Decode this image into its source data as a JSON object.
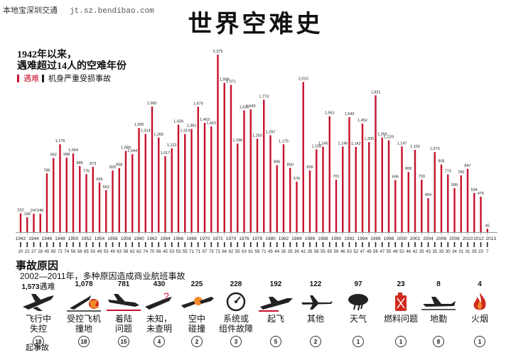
{
  "brand": {
    "name": "本地宝深圳交通",
    "url": "jt.sz.bendibao.com"
  },
  "title": "世界空难史",
  "subtitle_lines": [
    "1942年以来，",
    "遇难超过14人的空难年份"
  ],
  "legend": {
    "deaths_label": "遇难",
    "damaged_label": "机身严重受损事故",
    "deaths_color": "#c8102e",
    "damaged_color": "#222222"
  },
  "chart_data": {
    "type": "bar",
    "deaths_series_name": "遇难",
    "damaged_series_name": "机身严重受损事故",
    "year_labels": [
      "1942",
      "1944",
      "1946",
      "1948",
      "1950",
      "1952",
      "1954",
      "1956",
      "1958",
      "1960",
      "1962",
      "1964",
      "1966",
      "1968",
      "1970",
      "1972",
      "1974",
      "1976",
      "1978",
      "1980",
      "1982",
      "1984",
      "1986",
      "1988",
      "1990",
      "1992",
      "1994",
      "1996",
      "1998",
      "2000",
      "2002",
      "2004",
      "2006",
      "2008",
      "2010",
      "2012",
      "2013"
    ],
    "x": [
      1942,
      1943,
      1944,
      1945,
      1946,
      1947,
      1948,
      1949,
      1950,
      1951,
      1952,
      1953,
      1954,
      1955,
      1956,
      1957,
      1958,
      1959,
      1960,
      1961,
      1962,
      1963,
      1964,
      1965,
      1966,
      1967,
      1968,
      1969,
      1970,
      1971,
      1972,
      1973,
      1974,
      1975,
      1976,
      1977,
      1978,
      1979,
      1980,
      1981,
      1982,
      1983,
      1984,
      1985,
      1986,
      1987,
      1988,
      1989,
      1990,
      1991,
      1992,
      1993,
      1994,
      1995,
      1996,
      1997,
      1998,
      1999,
      2000,
      2001,
      2002,
      2003,
      2004,
      2005,
      2006,
      2007,
      2008,
      2009,
      2010,
      2011,
      2012,
      2013
    ],
    "deaths": [
      252,
      199,
      247,
      246,
      786,
      992,
      1176,
      998,
      1054,
      885,
      776,
      873,
      665,
      562,
      825,
      858,
      1088,
      1044,
      1395,
      1314,
      1681,
      1265,
      1017,
      1122,
      1439,
      1314,
      1381,
      1679,
      1463,
      1415,
      2375,
      1998,
      1971,
      1186,
      1630,
      1645,
      1250,
      1773,
      1297,
      896,
      1175,
      860,
      676,
      2010,
      826,
      1108,
      1145,
      1551,
      701,
      1146,
      1540,
      1142,
      1452,
      1205,
      1831,
      1266,
      1229,
      696,
      1147,
      806,
      1102,
      703,
      454,
      1073,
      905,
      773,
      589,
      760,
      847,
      524,
      475,
      45
    ],
    "damaged": [
      20,
      22,
      27,
      28,
      45,
      65,
      72,
      74,
      56,
      56,
      65,
      50,
      49,
      53,
      49,
      63,
      58,
      62,
      62,
      74,
      70,
      56,
      45,
      53,
      53,
      55,
      71,
      71,
      67,
      73,
      71,
      66,
      62,
      55,
      63,
      61,
      59,
      71,
      45,
      44,
      35,
      35,
      39,
      42,
      35,
      58,
      55,
      65,
      59,
      46,
      53,
      52,
      47,
      49,
      56,
      47,
      55,
      48,
      52,
      46,
      42,
      35,
      43,
      35,
      33,
      30,
      34,
      31,
      31,
      35,
      23,
      7
    ],
    "ylabel": "",
    "xlabel": ""
  },
  "causes_section": {
    "title": "事故原因",
    "subtitle": "2002—2011年，多种原因造成商业航班事故",
    "deaths_suffix": "遇难",
    "accident_note": "起事故",
    "items": [
      {
        "deaths": "1,573",
        "label1": "飞行中",
        "label2": "失控",
        "accidents": "18",
        "icon": "plane-falling-icon"
      },
      {
        "deaths": "1,078",
        "label1": "受控飞机",
        "label2": "撞地",
        "accidents": "18",
        "icon": "plane-crash-ground-icon"
      },
      {
        "deaths": "781",
        "label1": "着陆",
        "label2": "问题",
        "accidents": "15",
        "icon": "plane-landing-icon"
      },
      {
        "deaths": "430",
        "label1": "未知，",
        "label2": "未查明",
        "accidents": "4",
        "icon": "plane-unknown-icon"
      },
      {
        "deaths": "225",
        "label1": "空中",
        "label2": "碰撞",
        "accidents": "2",
        "icon": "midair-collision-icon"
      },
      {
        "deaths": "228",
        "label1": "系统或",
        "label2": "组件故障",
        "accidents": "3",
        "icon": "gauge-icon"
      },
      {
        "deaths": "192",
        "label1": "起飞",
        "label2": "",
        "accidents": "5",
        "icon": "plane-takeoff-icon"
      },
      {
        "deaths": "122",
        "label1": "其他",
        "label2": "",
        "accidents": "2",
        "icon": "plane-other-icon"
      },
      {
        "deaths": "97",
        "label1": "天气",
        "label2": "",
        "accidents": "1",
        "icon": "weather-icon"
      },
      {
        "deaths": "23",
        "label1": "燃料问题",
        "label2": "",
        "accidents": "1",
        "icon": "fuel-can-icon"
      },
      {
        "deaths": "8",
        "label1": "地勤",
        "label2": "",
        "accidents": "8",
        "icon": "ground-plane-icon"
      },
      {
        "deaths": "4",
        "label1": "火烟",
        "label2": "",
        "accidents": "1",
        "icon": "fire-icon"
      }
    ]
  }
}
